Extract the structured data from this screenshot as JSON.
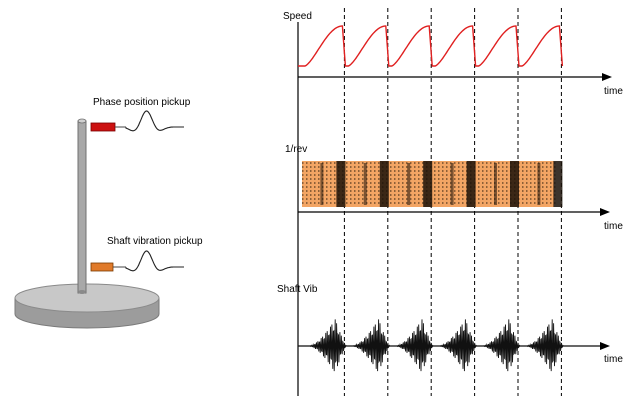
{
  "labels": {
    "phase_pickup": "Phase position pickup",
    "shaft_pickup": "Shaft vibration pickup",
    "speed": "Speed",
    "one_per_rev": "1/rev",
    "shaft_vib": "Shaft Vib",
    "time": "time"
  },
  "colors": {
    "speed_trace": "#e02020",
    "phase_sensor": "#cc1111",
    "shaft_sensor": "#e07a2a",
    "rev_fill": "#f0a060",
    "pole": "#9a9a9a",
    "base": "#b4b4b4"
  },
  "revolutions": 6
}
